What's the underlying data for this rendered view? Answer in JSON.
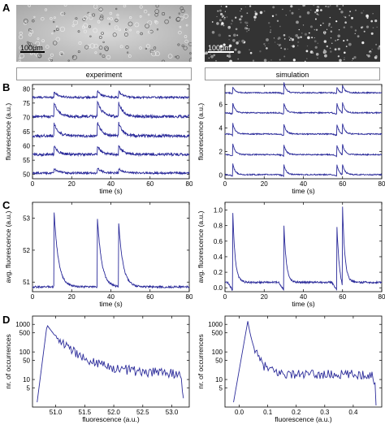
{
  "panels": {
    "A": {
      "label": "A",
      "scale_left": "100μm",
      "scale_right": "100μm"
    },
    "B": {
      "label": "B"
    },
    "C": {
      "label": "C"
    },
    "D": {
      "label": "D"
    }
  },
  "headers": {
    "experiment": "experiment",
    "simulation": "simulation"
  },
  "colors": {
    "trace": "#2b2b9a",
    "axis": "#000000"
  },
  "chart_data": [
    {
      "id": "B-exp",
      "type": "line",
      "xlabel": "time  (s)",
      "ylabel": "fluorescence  (a.u.)",
      "xlim": [
        0,
        80
      ],
      "ylim": [
        48.5,
        81.5
      ],
      "xticks": [
        0,
        20,
        40,
        60,
        80
      ],
      "yticks": [
        50,
        55,
        60,
        65,
        70,
        75,
        80
      ],
      "series": [
        {
          "baseline": 77,
          "noise": 0.35,
          "spikes": [
            {
              "t": 11,
              "h": 2.0
            },
            {
              "t": 33,
              "h": 2.5
            },
            {
              "t": 44,
              "h": 2.0
            }
          ]
        },
        {
          "baseline": 70.3,
          "noise": 0.5,
          "spikes": [
            {
              "t": 11,
              "h": 5.0
            },
            {
              "t": 33,
              "h": 6.0
            },
            {
              "t": 44,
              "h": 5.0
            }
          ]
        },
        {
          "baseline": 63.5,
          "noise": 0.5,
          "spikes": [
            {
              "t": 11,
              "h": 4.5
            },
            {
              "t": 33,
              "h": 5.0
            },
            {
              "t": 44,
              "h": 4.5
            }
          ]
        },
        {
          "baseline": 57,
          "noise": 0.45,
          "spikes": [
            {
              "t": 11,
              "h": 3.0
            },
            {
              "t": 33,
              "h": 3.2
            },
            {
              "t": 44,
              "h": 3.0
            }
          ]
        },
        {
          "baseline": 50.5,
          "noise": 0.35,
          "spikes": [
            {
              "t": 11,
              "h": 1.5
            },
            {
              "t": 33,
              "h": 1.8
            },
            {
              "t": 44,
              "h": 1.5
            }
          ]
        }
      ]
    },
    {
      "id": "B-sim",
      "type": "line",
      "xlabel": "time  (s)",
      "ylabel": "fluorescence  (a.u.)",
      "xlim": [
        0,
        80
      ],
      "ylim": [
        -0.3,
        7.7
      ],
      "xticks": [
        0,
        20,
        40,
        60,
        80
      ],
      "yticks": [
        0,
        2,
        4,
        6
      ],
      "series": [
        {
          "baseline": 7.0,
          "noise": 0.05,
          "spikes": [
            {
              "t": 4,
              "h": 0.5
            },
            {
              "t": 30,
              "h": 0.9
            },
            {
              "t": 57,
              "h": 0.5
            },
            {
              "t": 60,
              "h": 0.6
            }
          ]
        },
        {
          "baseline": 5.3,
          "noise": 0.05,
          "spikes": [
            {
              "t": 4,
              "h": 0.8
            },
            {
              "t": 30,
              "h": 0.9
            },
            {
              "t": 57,
              "h": 0.9
            },
            {
              "t": 60,
              "h": 0.8
            }
          ]
        },
        {
          "baseline": 3.5,
          "noise": 0.05,
          "spikes": [
            {
              "t": 4,
              "h": 0.9
            },
            {
              "t": 30,
              "h": 0.9
            },
            {
              "t": 57,
              "h": 0.9
            },
            {
              "t": 60,
              "h": 0.8
            }
          ]
        },
        {
          "baseline": 1.75,
          "noise": 0.05,
          "spikes": [
            {
              "t": 4,
              "h": 0.9
            },
            {
              "t": 30,
              "h": 0.9
            },
            {
              "t": 57,
              "h": 0.9
            },
            {
              "t": 60,
              "h": 0.8
            }
          ]
        },
        {
          "baseline": 0.05,
          "noise": 0.05,
          "spikes": [
            {
              "t": 4,
              "h": 0.9
            },
            {
              "t": 30,
              "h": 0.9
            },
            {
              "t": 57,
              "h": 0.9
            },
            {
              "t": 60,
              "h": 0.8
            }
          ]
        }
      ]
    },
    {
      "id": "C-exp",
      "type": "line",
      "xlabel": "time  (s)",
      "ylabel": "avg. fluorescence  (a.u.)",
      "xlim": [
        0,
        80
      ],
      "ylim": [
        50.7,
        53.5
      ],
      "xticks": [
        0,
        20,
        40,
        60,
        80
      ],
      "yticks": [
        51,
        52,
        53
      ],
      "series": [
        {
          "baseline": 50.85,
          "noise": 0.03,
          "spikes": [
            {
              "t": 11,
              "h": 2.4
            },
            {
              "t": 33,
              "h": 2.3
            },
            {
              "t": 44,
              "h": 2.0
            }
          ]
        }
      ]
    },
    {
      "id": "C-sim",
      "type": "line",
      "xlabel": "time  (s)",
      "ylabel": "avg. fluorescence  (a.u.)",
      "xlim": [
        0,
        80
      ],
      "ylim": [
        -0.05,
        1.1
      ],
      "xticks": [
        0,
        20,
        40,
        60,
        80
      ],
      "yticks": [
        0.0,
        0.2,
        0.4,
        0.6,
        0.8,
        1.0
      ],
      "series": [
        {
          "baseline": 0.07,
          "noise": 0.012,
          "spikes": [
            {
              "t": 4,
              "h": 0.9
            },
            {
              "t": 30,
              "h": 0.8
            },
            {
              "t": 57,
              "h": 0.8
            },
            {
              "t": 60,
              "h": 0.9
            }
          ]
        }
      ]
    },
    {
      "id": "D-exp",
      "type": "line",
      "xlabel": "fluorescence (a.u.)",
      "ylabel": "nr. of occurrences",
      "xlim": [
        50.6,
        53.3
      ],
      "ylim": [
        1,
        2000
      ],
      "log_y": true,
      "xticks": [
        51.0,
        51.5,
        52.0,
        52.5,
        53.0
      ],
      "yticks": [
        5,
        10,
        50,
        100,
        500,
        1000
      ],
      "peak_x": 50.85,
      "peak_y": 950,
      "start_x": 50.68,
      "end_x": 53.2,
      "tail_y": 15
    },
    {
      "id": "D-sim",
      "type": "line",
      "xlabel": "fluorescence (a.u.)",
      "ylabel": "nr. of occurrences",
      "xlim": [
        -0.05,
        0.5
      ],
      "ylim": [
        1,
        2000
      ],
      "log_y": true,
      "xticks": [
        0.0,
        0.1,
        0.2,
        0.3,
        0.4
      ],
      "yticks": [
        5,
        10,
        50,
        100,
        500,
        1000
      ],
      "peak_x": 0.03,
      "peak_y": 1300,
      "start_x": -0.02,
      "end_x": 0.48,
      "tail_y": 15
    }
  ]
}
